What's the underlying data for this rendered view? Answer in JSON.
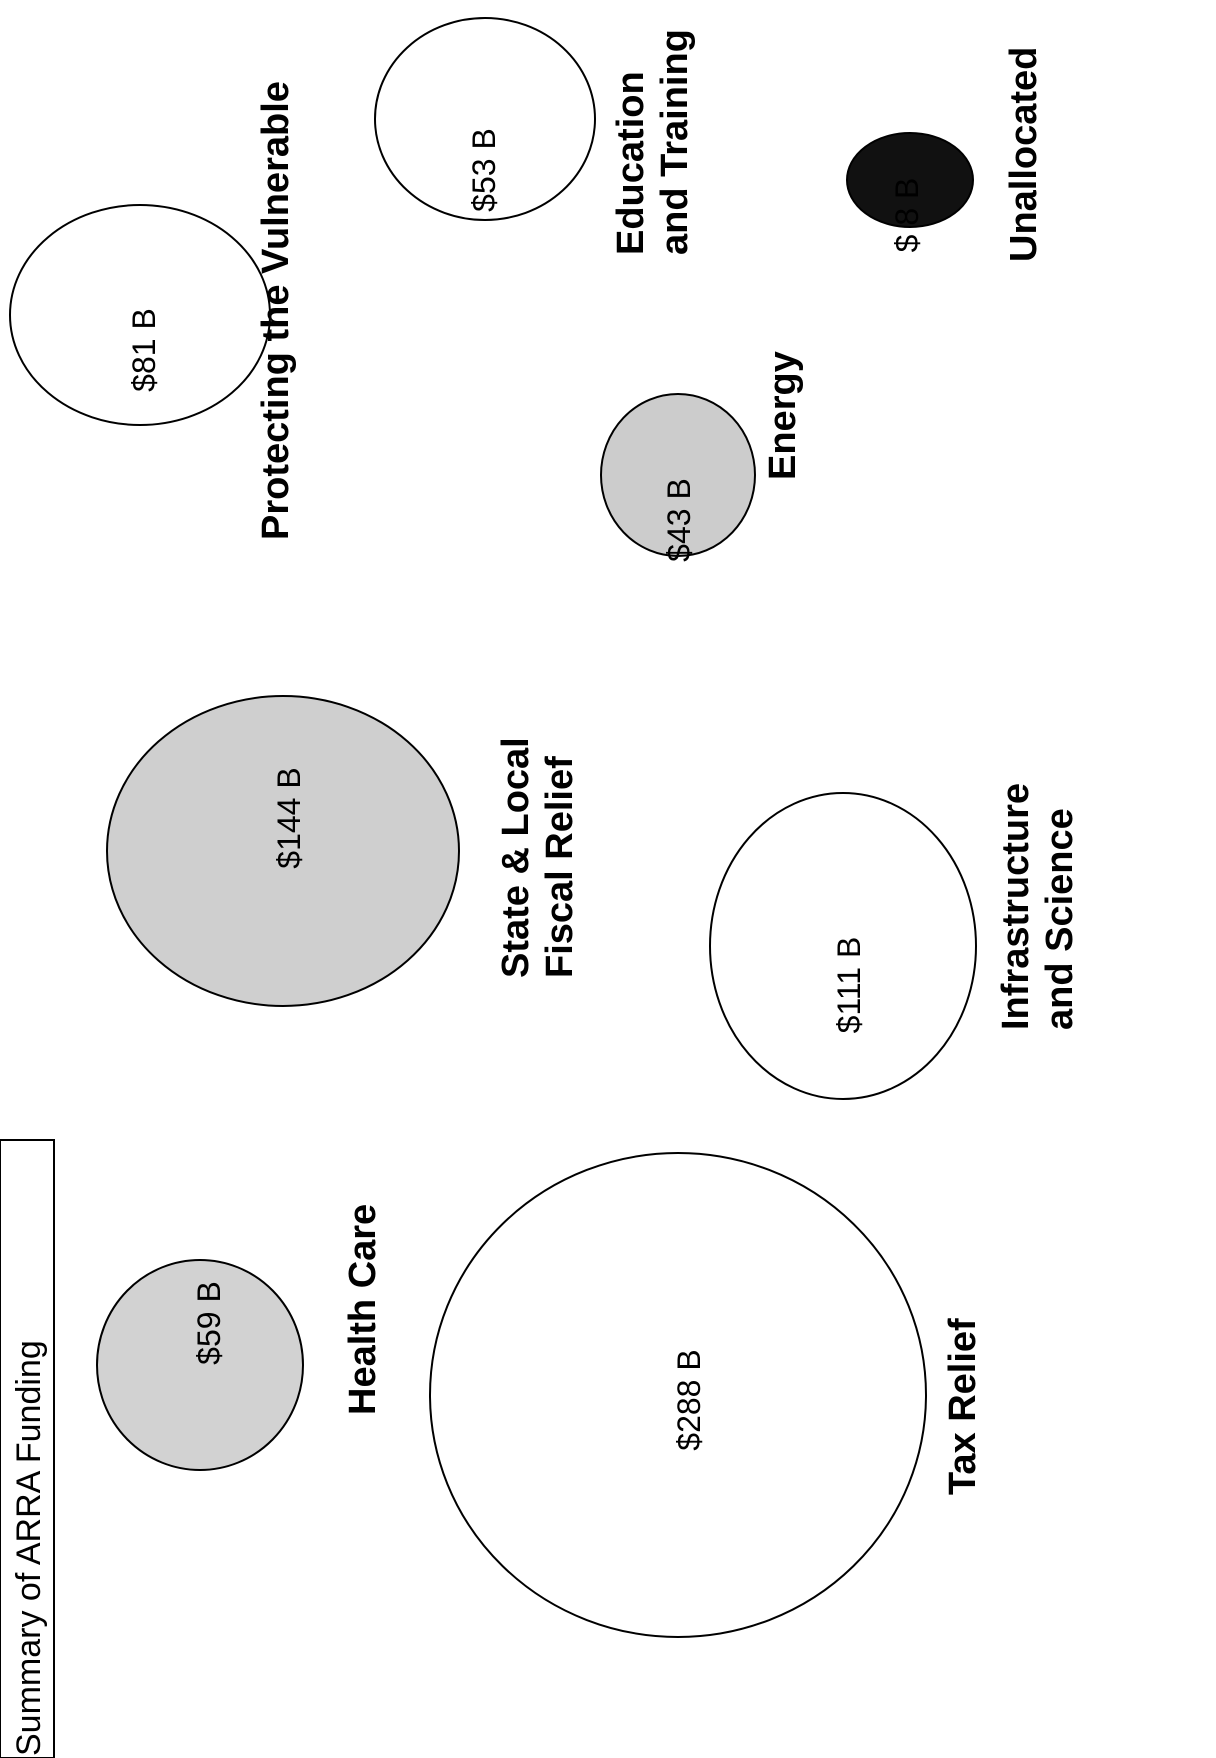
{
  "chart_data": {
    "type": "bubble",
    "title": "Summary of ARRA Funding",
    "unit": "B",
    "items": [
      {
        "label": "Health Care",
        "value": 59,
        "value_text": "$59 B",
        "fill": "#d2d2d2"
      },
      {
        "label": "Tax Relief",
        "value": 288,
        "value_text": "$288 B",
        "fill": "#ffffff"
      },
      {
        "label": "State & Local Fiscal Relief",
        "label_lines": [
          "State & Local",
          "Fiscal Relief"
        ],
        "value": 144,
        "value_text": "$144 B",
        "fill": "#cfcfcf"
      },
      {
        "label": "Infrastructure and Science",
        "label_lines": [
          "Infrastructure",
          "and Science"
        ],
        "value": 111,
        "value_text": "$111 B",
        "fill": "#ffffff"
      },
      {
        "label": "Protecting the Vulnerable",
        "value": 81,
        "value_text": "$81 B",
        "fill": "#ffffff"
      },
      {
        "label": "Energy",
        "value": 43,
        "value_text": "$43 B",
        "fill": "#cccccc"
      },
      {
        "label": "Education and Training",
        "label_lines": [
          "Education",
          "and Training"
        ],
        "value": 53,
        "value_text": "$53 B",
        "fill": "#ffffff"
      },
      {
        "label": "Unallocated",
        "value": 8,
        "value_text": "$ 8 B",
        "fill": "#111111"
      }
    ]
  }
}
